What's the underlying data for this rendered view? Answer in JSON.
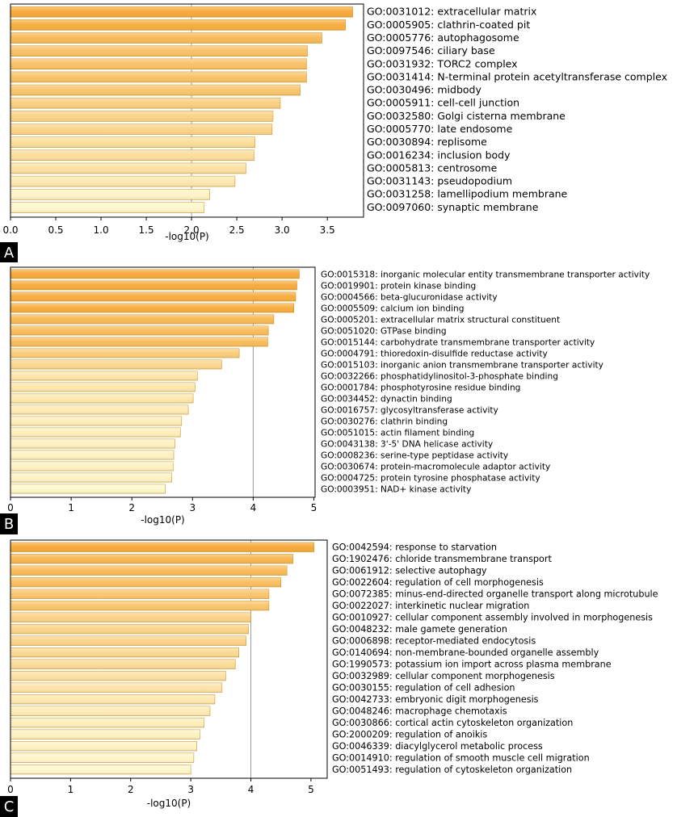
{
  "chart_data": [
    {
      "panel": "A",
      "type": "bar",
      "orientation": "horizontal",
      "xlabel": "-log10(P)",
      "xlim": [
        0,
        3.9
      ],
      "xticks": [
        "0.0",
        "0.5",
        "1.0",
        "1.5",
        "2.0",
        "2.5",
        "3.0",
        "3.5"
      ],
      "xtick_values": [
        0,
        0.5,
        1.0,
        1.5,
        2.0,
        2.5,
        3.0,
        3.5
      ],
      "gridline": 2,
      "categories": [
        "GO:0031012: extracellular matrix",
        "GO:0005905: clathrin-coated pit",
        "GO:0005776: autophagosome",
        "GO:0097546: ciliary base",
        "GO:0031932: TORC2 complex",
        "GO:0031414: N-terminal protein acetyltransferase complex",
        "GO:0030496: midbody",
        "GO:0005911: cell-cell junction",
        "GO:0032580: Golgi cisterna membrane",
        "GO:0005770: late endosome",
        "GO:0030894: replisome",
        "GO:0016234: inclusion body",
        "GO:0005813: centrosome",
        "GO:0031143: pseudopodium",
        "GO:0031258: lamellipodium membrane",
        "GO:0097060: synaptic membrane"
      ],
      "values": [
        3.78,
        3.7,
        3.44,
        3.28,
        3.27,
        3.27,
        3.2,
        2.98,
        2.9,
        2.89,
        2.7,
        2.69,
        2.6,
        2.48,
        2.2,
        2.14
      ]
    },
    {
      "panel": "B",
      "type": "bar",
      "orientation": "horizontal",
      "xlabel": "-log10(P)",
      "xlim": [
        0,
        5.02
      ],
      "xticks": [
        "0",
        "1",
        "2",
        "3",
        "4",
        "5"
      ],
      "xtick_values": [
        0,
        1,
        2,
        3,
        4,
        5
      ],
      "gridline": 4,
      "categories": [
        "GO:0015318: inorganic molecular entity transmembrane transporter activity",
        "GO:0019901: protein kinase binding",
        "GO:0004566: beta-glucuronidase activity",
        "GO:0005509: calcium ion binding",
        "GO:0005201: extracellular matrix structural constituent",
        "GO:0051020: GTPase binding",
        "GO:0015144: carbohydrate transmembrane transporter activity",
        "GO:0004791: thioredoxin-disulfide reductase activity",
        "GO:0015103: inorganic anion transmembrane transporter activity",
        "GO:0032266: phosphatidylinositol-3-phosphate binding",
        "GO:0001784: phosphotyrosine residue binding",
        "GO:0034452: dynactin binding",
        "GO:0016757: glycosyltransferase activity",
        "GO:0030276: clathrin binding",
        "GO:0051015: actin filament binding",
        "GO:0043138: 3'-5' DNA helicase activity",
        "GO:0008236: serine-type peptidase activity",
        "GO:0030674: protein-macromolecule adaptor activity",
        "GO:0004725: protein tyrosine phosphatase activity",
        "GO:0003951: NAD+ kinase activity"
      ],
      "values": [
        4.76,
        4.72,
        4.7,
        4.67,
        4.34,
        4.25,
        4.24,
        3.77,
        3.48,
        3.08,
        3.04,
        3.01,
        2.93,
        2.82,
        2.8,
        2.71,
        2.69,
        2.68,
        2.66,
        2.55
      ]
    },
    {
      "panel": "C",
      "type": "bar",
      "orientation": "horizontal",
      "xlabel": "-log10(P)",
      "xlim": [
        0,
        5.27
      ],
      "xticks": [
        "0",
        "1",
        "2",
        "3",
        "4",
        "5"
      ],
      "xtick_values": [
        0,
        1,
        2,
        3,
        4,
        5
      ],
      "gridline": 4,
      "categories": [
        "GO:0042594: response to starvation",
        "GO:1902476: chloride transmembrane transport",
        "GO:0061912: selective autophagy",
        "GO:0022604: regulation of cell morphogenesis",
        "GO:0072385: minus-end-directed organelle transport along microtubule",
        "GO:0022027: interkinetic nuclear migration",
        "GO:0010927: cellular component assembly involved in morphogenesis",
        "GO:0048232: male gamete generation",
        "GO:0006898: receptor-mediated endocytosis",
        "GO:0140694: non-membrane-bounded organelle assembly",
        "GO:1990573: potassium ion import across plasma membrane",
        "GO:0032989: cellular component morphogenesis",
        "GO:0030155: regulation of cell adhesion",
        "GO:0042733: embryonic digit morphogenesis",
        "GO:0048246: macrophage chemotaxis",
        "GO:0030866: cortical actin cytoskeleton organization",
        "GO:2000209: regulation of anoikis",
        "GO:0046339: diacylglycerol metabolic process",
        "GO:0014910: regulation of smooth muscle cell migration",
        "GO:0051493: regulation of cytoskeleton organization"
      ],
      "values": [
        5.05,
        4.7,
        4.6,
        4.5,
        4.3,
        4.3,
        4.0,
        3.96,
        3.92,
        3.8,
        3.74,
        3.58,
        3.52,
        3.4,
        3.32,
        3.22,
        3.15,
        3.1,
        3.05,
        3.0
      ]
    }
  ],
  "colors": {
    "bar_high": "#f7aa3a",
    "bar_low": "#fef7cc",
    "bar_stroke": "#c8921c",
    "axis": "#000000",
    "grid": "#9b9b9b"
  }
}
